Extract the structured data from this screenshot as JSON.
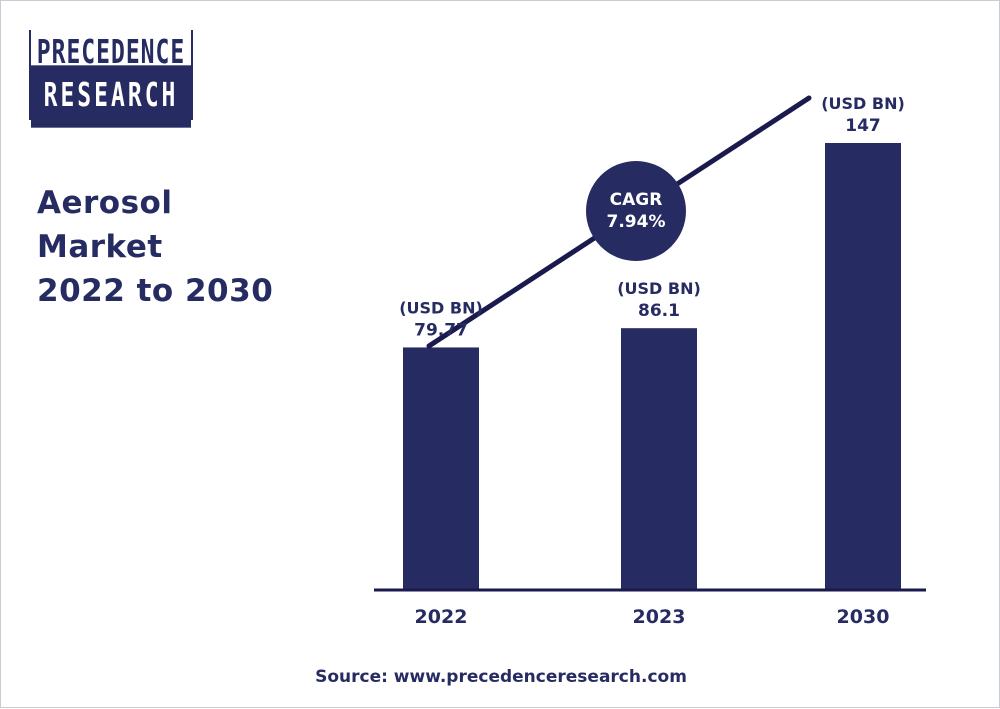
{
  "logo": {
    "line1": "PRECEDENCE",
    "line2": "RESEARCH"
  },
  "title": {
    "line1": "Aerosol",
    "line2": "Market",
    "line3": "2022 to 2030"
  },
  "cagr": {
    "label": "CAGR",
    "value": "7.94%"
  },
  "source": "Source: www.precedenceresearch.com",
  "colors": {
    "bar": "#262c61",
    "text": "#262c61",
    "axis": "#1a1a4e"
  },
  "chart_data": {
    "type": "bar",
    "categories": [
      "2022",
      "2023",
      "2030"
    ],
    "values": [
      79.77,
      86.1,
      147
    ],
    "value_labels": [
      "79.77",
      "86.1",
      "147"
    ],
    "unit_label": "(USD BN)",
    "ylim": [
      0,
      150
    ],
    "grid": false
  }
}
